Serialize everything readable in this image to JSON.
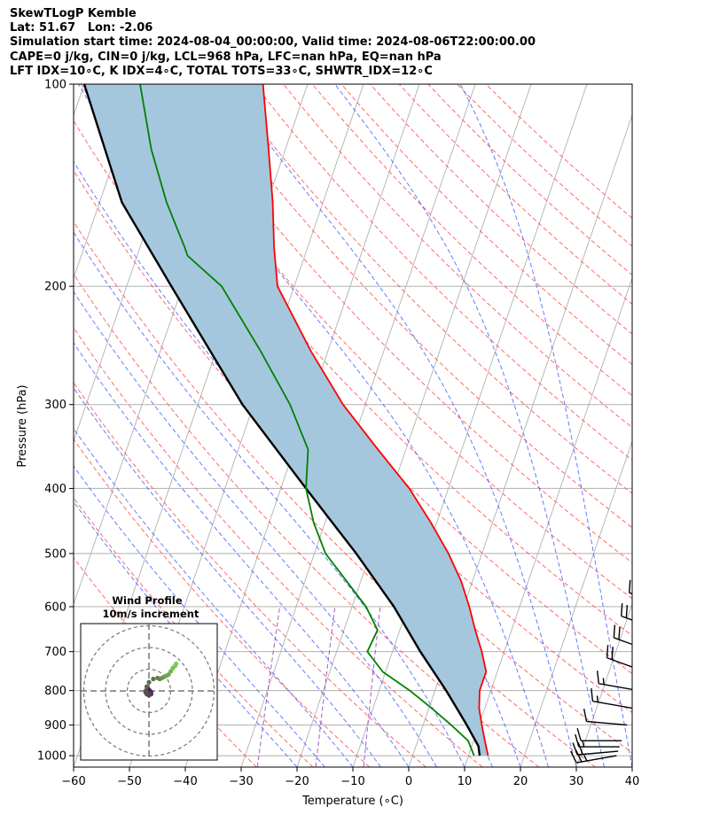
{
  "header": {
    "line1": "SkewTLogP Kemble",
    "line2": "Lat: 51.67   Lon: -2.06",
    "line3": "Simulation start time: 2024-08-04_00:00:00, Valid time: 2024-08-06T22:00:00.00",
    "line4": "CAPE=0 j/kg, CIN=0 j/kg, LCL=968 hPa, LFC=nan hPa, EQ=nan hPa",
    "line5": "LFT IDX=10∘C, K IDX=4∘C, TOTAL TOTS=33∘C, SHWTR_IDX=12∘C"
  },
  "colors": {
    "temperature": "#ff0000",
    "dewpoint": "#008000",
    "parcel": "#000000",
    "cape_fill": "#a4c7de",
    "dry_adiabat": "#ff5050",
    "moist_adiabat": "#3050ff",
    "mixing_ratio": "#9040c0",
    "isotherm": "#b0b0b0",
    "grid": "#b0b0b0",
    "hodograph": "#440154",
    "hodograph_end": "#7ad151"
  },
  "chart_data": [
    {
      "type": "line",
      "subtype": "skew-t log-p",
      "title": "",
      "xlabel": "Temperature (∘C)",
      "ylabel": "Pressure (hPa)",
      "xlim": [
        -60,
        40
      ],
      "ylim": [
        1040,
        100
      ],
      "yscale": "log",
      "grid": true,
      "x_ticks": [
        "−60",
        "−50",
        "−40",
        "−30",
        "−20",
        "−10",
        "0",
        "10",
        "20",
        "30",
        "40"
      ],
      "x_tick_values": [
        -60,
        -50,
        -40,
        -30,
        -20,
        -10,
        0,
        10,
        20,
        30,
        40
      ],
      "y_ticks": [
        "100",
        "200",
        "300",
        "400",
        "500",
        "600",
        "700",
        "800",
        "900",
        "1000"
      ],
      "y_tick_values": [
        100,
        200,
        300,
        400,
        500,
        600,
        700,
        800,
        900,
        1000
      ],
      "series": [
        {
          "role": "temperature",
          "pressure": [
            1000,
            950,
            900,
            850,
            800,
            750,
            700,
            650,
            600,
            550,
            500,
            450,
            400,
            350,
            300,
            250,
            200,
            175,
            150,
            125,
            100
          ],
          "values": [
            13.5,
            12.0,
            10.5,
            9.0,
            8.0,
            8.0,
            6.0,
            3.5,
            1.0,
            -2.0,
            -6.0,
            -11.0,
            -17.0,
            -25.0,
            -34.0,
            -43.0,
            -53.0,
            -56.0,
            -59.0,
            -63.0,
            -68.0
          ]
        },
        {
          "role": "dewpoint",
          "pressure": [
            1000,
            950,
            900,
            850,
            800,
            750,
            700,
            650,
            600,
            550,
            500,
            450,
            400,
            350,
            300,
            250,
            200,
            180,
            175,
            150,
            125,
            100
          ],
          "values": [
            11.0,
            9.0,
            5.0,
            0.5,
            -4.5,
            -10.5,
            -14.5,
            -14.0,
            -17.5,
            -22.5,
            -28.0,
            -32.0,
            -35.5,
            -37.5,
            -43.5,
            -52.0,
            -63.0,
            -71.0,
            -72.0,
            -78.0,
            -84.0,
            -90.0
          ]
        },
        {
          "role": "parcel",
          "pressure": [
            1000,
            968,
            900,
            850,
            800,
            700,
            600,
            500,
            400,
            300,
            250,
            200,
            150,
            100
          ],
          "values": [
            12.0,
            11.2,
            7.8,
            5.0,
            2.0,
            -5.0,
            -12.5,
            -22.5,
            -35.5,
            -52.0,
            -61.0,
            -72.0,
            -86.0,
            -100.0
          ]
        }
      ],
      "wind_barbs": {
        "x_temperature": 36.5,
        "pressure": [
          1000,
          985,
          970,
          950,
          900,
          850,
          800,
          750,
          700,
          650,
          600,
          550,
          500,
          450,
          400,
          350,
          300,
          250,
          225,
          200,
          175,
          150,
          125,
          100
        ],
        "speed_kt": [
          25,
          20,
          15,
          10,
          10,
          15,
          15,
          20,
          20,
          20,
          20,
          20,
          20,
          20,
          20,
          20,
          20,
          20,
          20,
          20,
          20,
          20,
          20,
          20
        ],
        "direction_deg": [
          260,
          265,
          270,
          270,
          275,
          280,
          280,
          290,
          290,
          290,
          290,
          290,
          290,
          290,
          290,
          290,
          290,
          290,
          290,
          290,
          290,
          290,
          290,
          290
        ]
      }
    },
    {
      "type": "scatter",
      "subtype": "hodograph",
      "title": "Wind Profile",
      "subtitle": "10m/s increment",
      "rings_ms": [
        10,
        20,
        30
      ],
      "u_ms": [
        -1.5,
        -1.0,
        -0.5,
        0.0,
        0.5,
        1.0,
        1.0,
        0.0,
        -1.0,
        -1.5,
        -1.0,
        0.0,
        2.0,
        4.0,
        5.0,
        6.0,
        7.0,
        8.0,
        9.0,
        10.0,
        11.0,
        12.0,
        12.5
      ],
      "v_ms": [
        -0.5,
        0.5,
        1.0,
        0.5,
        0.0,
        -0.5,
        -1.5,
        -2.0,
        -1.5,
        0.0,
        2.0,
        4.0,
        5.5,
        6.0,
        5.5,
        6.0,
        6.5,
        7.0,
        7.5,
        9.0,
        10.5,
        11.5,
        12.5
      ]
    }
  ]
}
